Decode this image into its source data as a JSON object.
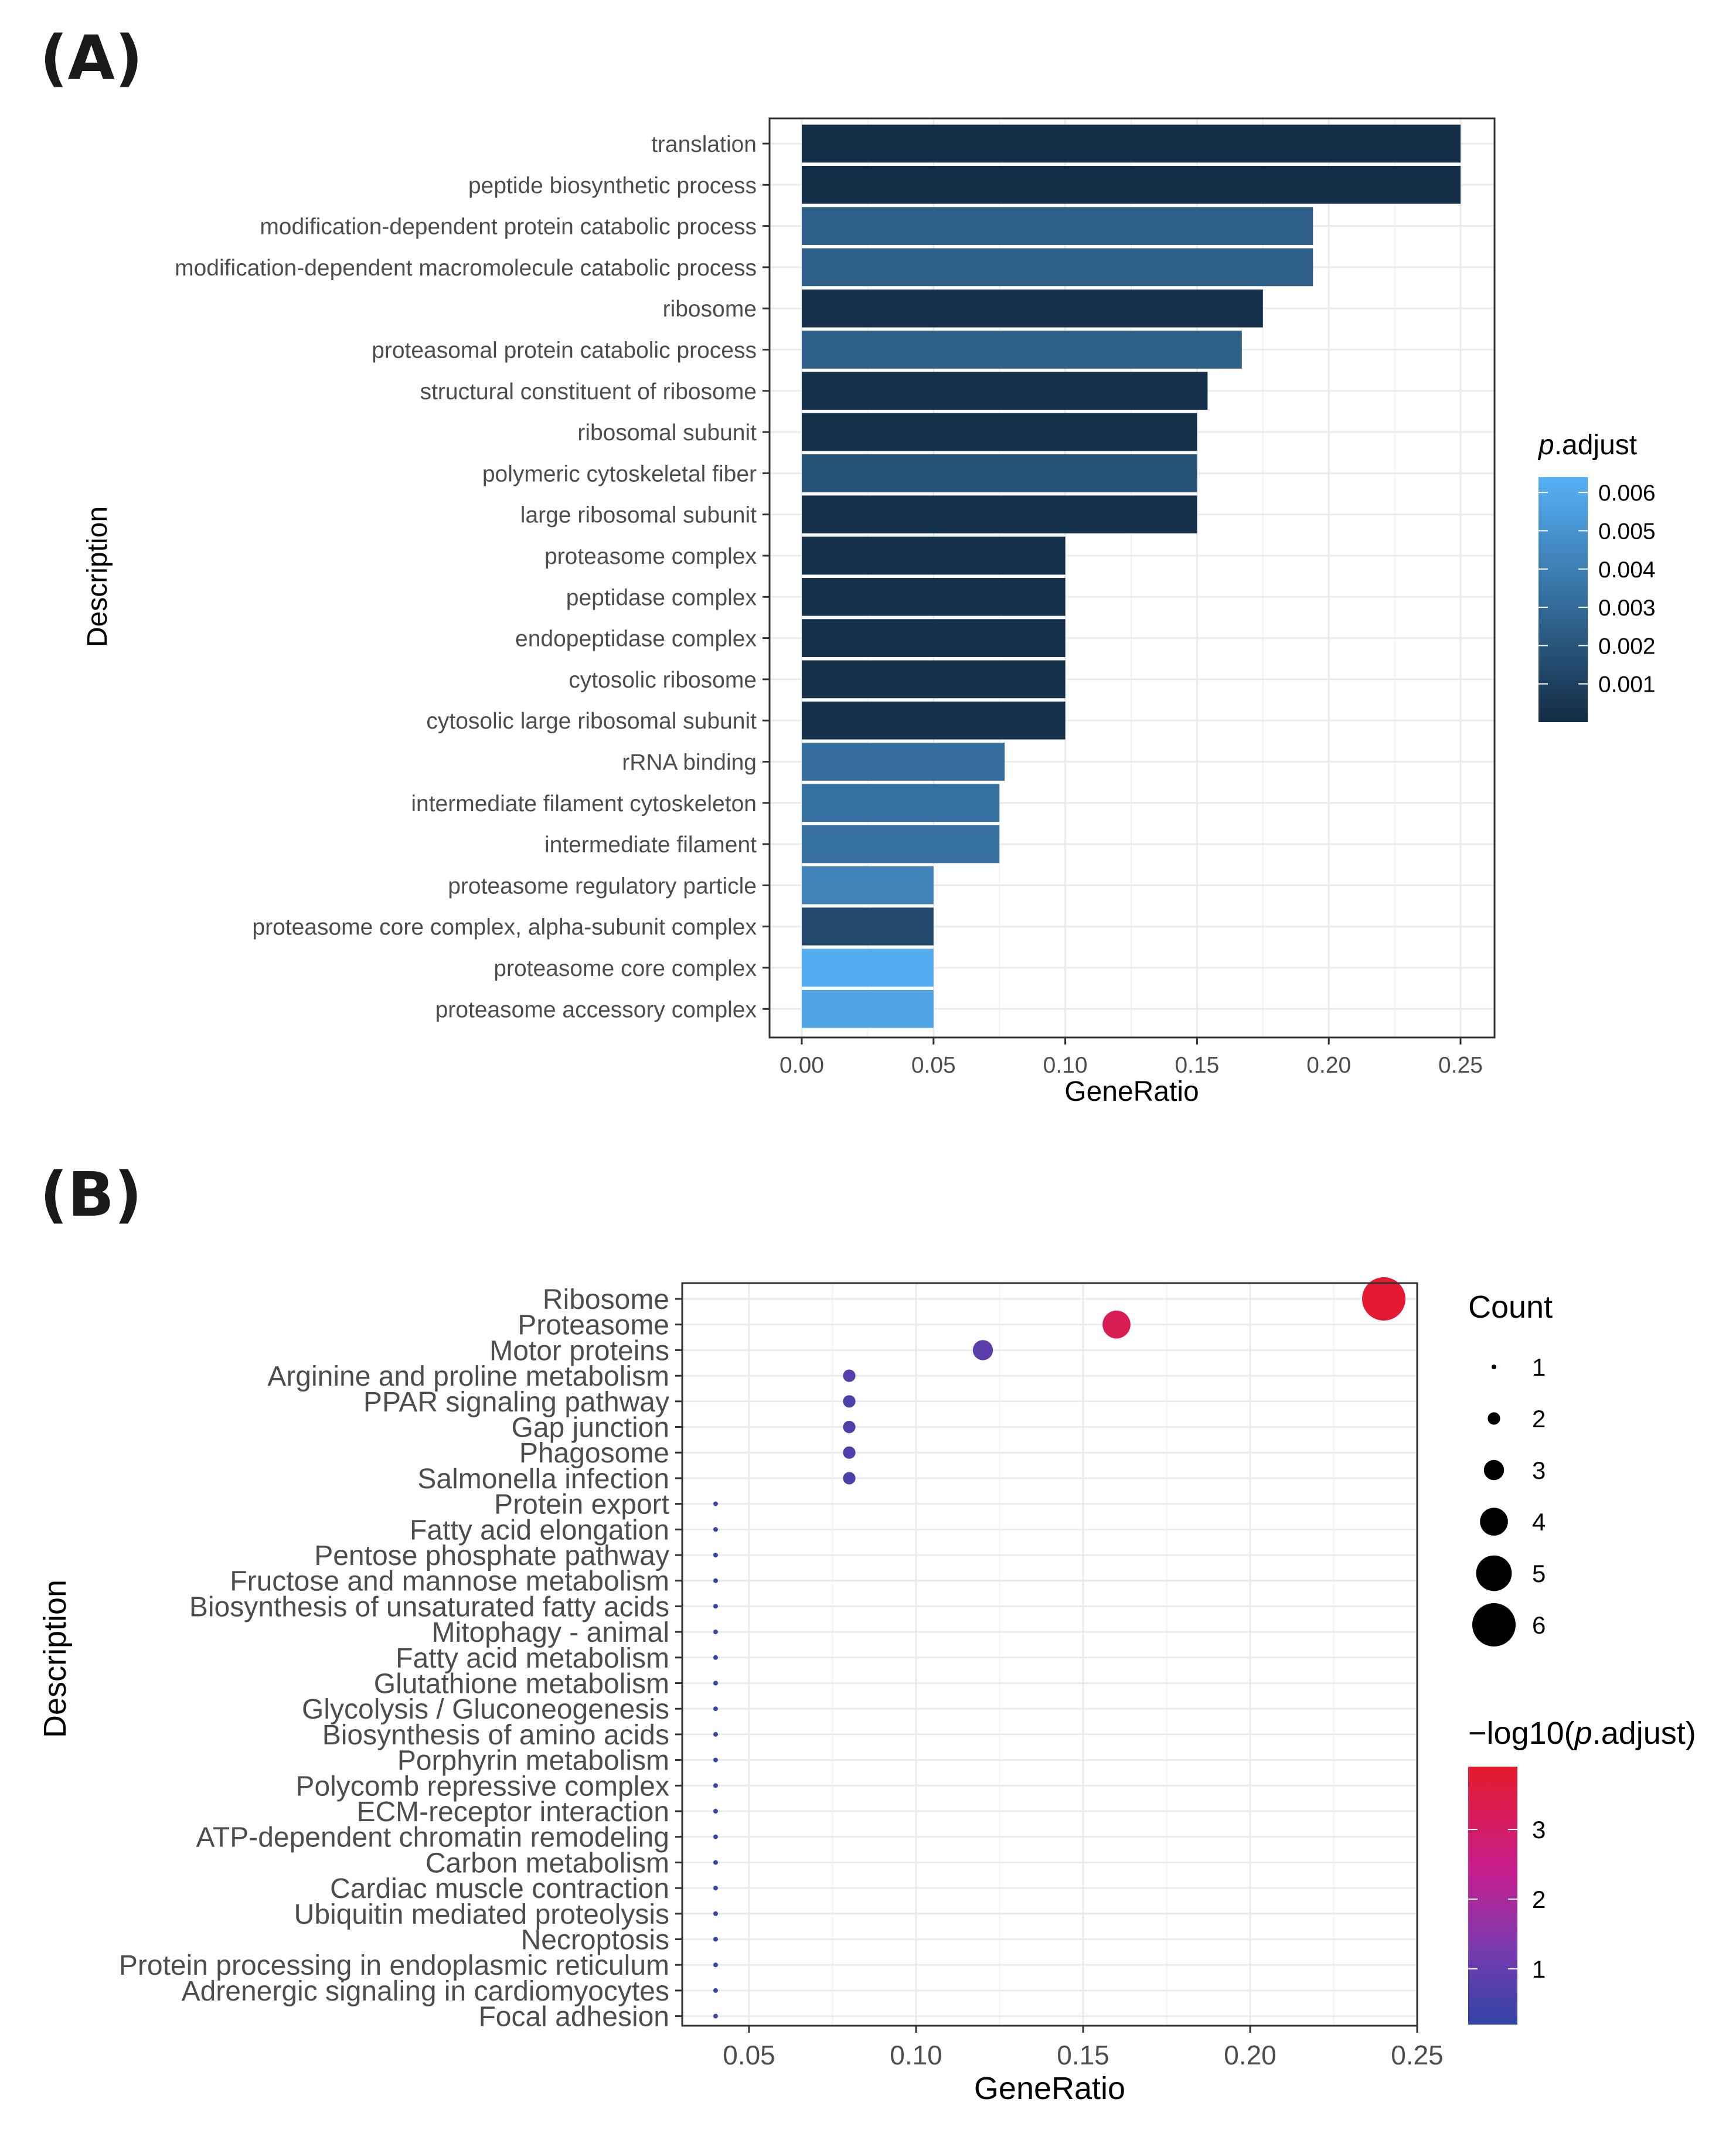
{
  "chart_data": [
    {
      "panel_label": "(A)",
      "type": "bar",
      "orientation": "horizontal",
      "xlabel": "GeneRatio",
      "ylabel": "Description",
      "xlim": [
        0,
        0.25
      ],
      "xticks": [
        0.0,
        0.05,
        0.1,
        0.15,
        0.2,
        0.25
      ],
      "xtick_labels": [
        "0.00",
        "0.05",
        "0.10",
        "0.15",
        "0.20",
        "0.25"
      ],
      "grid": true,
      "legend": {
        "title_italic": "p",
        "title_rest": ".adjust",
        "placement": "right",
        "colors": [
          "#132B43",
          "#56B1F7"
        ],
        "range": [
          0,
          0.0064
        ],
        "ticks": [
          0.006,
          0.005,
          0.004,
          0.003,
          0.002,
          0.001
        ],
        "tick_labels": [
          "0.006",
          "0.005",
          "0.004",
          "0.003",
          "0.002",
          "0.001"
        ]
      },
      "categories": [
        "translation",
        "peptide biosynthetic process",
        "modification-dependent protein catabolic process",
        "modification-dependent macromolecule catabolic process",
        "ribosome",
        "proteasomal protein catabolic process",
        "structural constituent of ribosome",
        "ribosomal subunit",
        "polymeric cytoskeletal fiber",
        "large ribosomal subunit",
        "proteasome complex",
        "peptidase complex",
        "endopeptidase complex",
        "cytosolic ribosome",
        "cytosolic large ribosomal subunit",
        "rRNA binding",
        "intermediate filament cytoskeleton",
        "intermediate filament",
        "proteasome regulatory particle",
        "proteasome core complex, alpha-subunit complex",
        "proteasome core complex",
        "proteasome accessory complex"
      ],
      "values": [
        0.25,
        0.25,
        0.194,
        0.194,
        0.175,
        0.167,
        0.154,
        0.15,
        0.15,
        0.15,
        0.1,
        0.1,
        0.1,
        0.1,
        0.1,
        0.077,
        0.075,
        0.075,
        0.05,
        0.05,
        0.05,
        0.05
      ],
      "p_adjust": [
        0.0001,
        0.0001,
        0.0025,
        0.0025,
        0.0003,
        0.0025,
        0.0003,
        0.0003,
        0.0018,
        0.0003,
        0.0003,
        0.0003,
        0.0003,
        0.0003,
        0.0003,
        0.0032,
        0.0033,
        0.0033,
        0.0042,
        0.0015,
        0.0062,
        0.0057
      ]
    },
    {
      "panel_label": "(B)",
      "type": "scatter",
      "xlabel": "GeneRatio",
      "ylabel": "Description",
      "xlim": [
        0.03,
        0.25
      ],
      "xticks": [
        0.05,
        0.1,
        0.15,
        0.2,
        0.25
      ],
      "xtick_labels": [
        "0.05",
        "0.10",
        "0.15",
        "0.20",
        "0.25"
      ],
      "grid": true,
      "size_legend": {
        "title": "Count",
        "placement": "top-right",
        "values": [
          1,
          2,
          3,
          4,
          5,
          6
        ],
        "labels": [
          "1",
          "2",
          "3",
          "4",
          "5",
          "6"
        ]
      },
      "color_legend": {
        "title_prefix": "−log10(",
        "title_italic": "p",
        "title_suffix": ".adjust)",
        "placement": "right",
        "colors": [
          "#3044A6",
          "#7B3AB0",
          "#C81E8E",
          "#E51A2A"
        ],
        "range": [
          0.2,
          3.9
        ],
        "ticks": [
          3,
          2,
          1
        ],
        "tick_labels": [
          "3",
          "2",
          "1"
        ]
      },
      "categories": [
        "Ribosome",
        "Proteasome",
        "Motor proteins",
        "Arginine and proline metabolism",
        "PPAR signaling pathway",
        "Gap junction",
        "Phagosome",
        "Salmonella infection",
        "Protein export",
        "Fatty acid elongation",
        "Pentose phosphate pathway",
        "Fructose and mannose metabolism",
        "Biosynthesis of unsaturated fatty acids",
        "Mitophagy - animal",
        "Fatty acid metabolism",
        "Glutathione metabolism",
        "Glycolysis / Gluconeogenesis",
        "Biosynthesis of amino acids",
        "Porphyrin metabolism",
        "Polycomb repressive complex",
        "ECM-receptor interaction",
        "ATP-dependent chromatin remodeling",
        "Carbon metabolism",
        "Cardiac muscle contraction",
        "Ubiquitin mediated proteolysis",
        "Necroptosis",
        "Protein processing in endoplasmic reticulum",
        "Adrenergic signaling in cardiomyocytes",
        "Focal adhesion"
      ],
      "x": [
        0.24,
        0.16,
        0.12,
        0.08,
        0.08,
        0.08,
        0.08,
        0.08,
        0.04,
        0.04,
        0.04,
        0.04,
        0.04,
        0.04,
        0.04,
        0.04,
        0.04,
        0.04,
        0.04,
        0.04,
        0.04,
        0.04,
        0.04,
        0.04,
        0.04,
        0.04,
        0.04,
        0.04,
        0.04
      ],
      "count": [
        6,
        4,
        3,
        2,
        2,
        2,
        2,
        2,
        1,
        1,
        1,
        1,
        1,
        1,
        1,
        1,
        1,
        1,
        1,
        1,
        1,
        1,
        1,
        1,
        1,
        1,
        1,
        1,
        1
      ],
      "neg_log10_p_adjust": [
        3.8,
        3.4,
        0.9,
        0.8,
        0.7,
        0.7,
        0.7,
        0.6,
        0.3,
        0.3,
        0.3,
        0.3,
        0.3,
        0.3,
        0.3,
        0.3,
        0.3,
        0.3,
        0.3,
        0.3,
        0.3,
        0.3,
        0.3,
        0.3,
        0.3,
        0.3,
        0.3,
        0.3,
        0.3
      ]
    }
  ]
}
